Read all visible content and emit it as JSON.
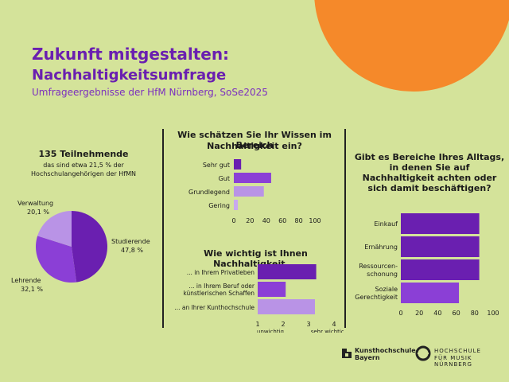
{
  "header": {
    "title_line1": "Zukunft mitgestalten:",
    "title_line2": "Nachhaltigkeitsumfrage",
    "subtitle": "Umfrageergebnisse der HfM Nürnberg, SoSe2025"
  },
  "participants": {
    "headline": "135 Teilnehmende",
    "note_line1": "das sind etwa 21,5 % der",
    "note_line2": "Hochschulangehörigen der HfMN"
  },
  "colors": {
    "background": "#d4e39a",
    "orange": "#f5892a",
    "purple_dark": "#6a1fb0",
    "purple_mid": "#8b3fd6",
    "purple_light": "#b993e6",
    "purple_pale": "#c8a8ee"
  },
  "chart_data": [
    {
      "type": "pie",
      "slices": [
        {
          "label": "Studierende",
          "value": 47.8,
          "value_label": "47,8 %",
          "color": "#6a1fb0"
        },
        {
          "label": "Lehrende",
          "value": 32.1,
          "value_label": "32,1 %",
          "color": "#8b3fd6"
        },
        {
          "label": "Verwaltung",
          "value": 20.1,
          "value_label": "20,1 %",
          "color": "#b993e6"
        }
      ]
    },
    {
      "type": "bar",
      "orientation": "horizontal",
      "title_line1": "Wie schätzen Sie Ihr Wissen im Bereich",
      "title_line2": "Nachhaltigkeit ein?",
      "categories": [
        "Sehr gut",
        "Gut",
        "Grundlegend",
        "Gering"
      ],
      "values": [
        9,
        46,
        37,
        5
      ],
      "colors": [
        "#6a1fb0",
        "#8b3fd6",
        "#b993e6",
        "#c8a8ee"
      ],
      "xlim": [
        0,
        100
      ],
      "xticks": [
        "0",
        "20",
        "40",
        "60",
        "80",
        "100"
      ]
    },
    {
      "type": "bar",
      "orientation": "horizontal",
      "title": "Wie wichtig ist Ihnen Nachhaltigkeit ...",
      "categories": [
        {
          "line1": "... in Ihrem Privatleben",
          "line2": ""
        },
        {
          "line1": "... in Ihrem Beruf oder",
          "line2": "künstlerischen Schaffen"
        },
        {
          "line1": "... an Ihrer Kunthochschule",
          "line2": ""
        }
      ],
      "values": [
        3.3,
        2.1,
        3.25
      ],
      "colors": [
        "#6a1fb0",
        "#8b3fd6",
        "#b993e6"
      ],
      "xlim": [
        1,
        4
      ],
      "xticks": [
        "1",
        "2",
        "3",
        "4"
      ],
      "scale_low_label": "unwichtig",
      "scale_high_label": "sehr wichtig"
    },
    {
      "type": "bar",
      "orientation": "horizontal",
      "title_lines": [
        "Gibt es Bereiche Ihres Alltags,",
        "in denen Sie auf",
        "Nachhaltigkeit achten oder",
        "sich damit beschäftigen?"
      ],
      "categories": [
        {
          "line1": "Einkauf",
          "line2": ""
        },
        {
          "line1": "Ernährung",
          "line2": ""
        },
        {
          "line1": "Ressourcen-",
          "line2": "schonung"
        },
        {
          "line1": "Soziale",
          "line2": "Gerechtigkeit"
        }
      ],
      "values": [
        85,
        85,
        85,
        63
      ],
      "colors": [
        "#6a1fb0",
        "#6a1fb0",
        "#6a1fb0",
        "#8b3fd6"
      ],
      "xlim": [
        0,
        100
      ],
      "xticks": [
        "0",
        "20",
        "40",
        "60",
        "80",
        "100"
      ]
    }
  ],
  "logos": {
    "left_line1": "Kunsthochschule",
    "left_line2": "Bayern",
    "right_line1": "HOCHSCHULE",
    "right_line2": "FÜR MUSIK NÜRNBERG"
  }
}
